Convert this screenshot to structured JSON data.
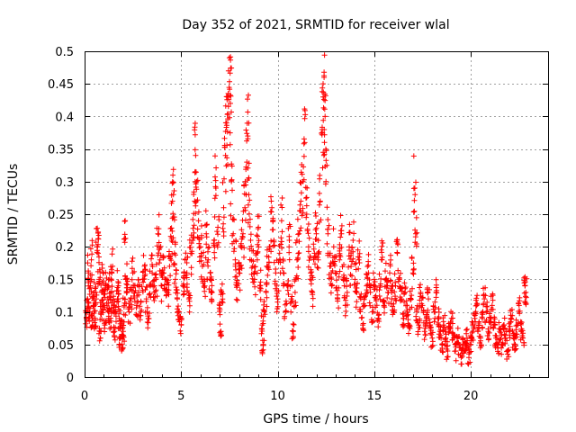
{
  "chart_data": {
    "type": "scatter",
    "title": "Day 352 of 2021, SRMTID for receiver wlal",
    "xlabel": "GPS time / hours",
    "ylabel": "SRMTID / TECUs",
    "xlim": [
      0,
      24
    ],
    "ylim": [
      0,
      0.5
    ],
    "x_ticks": [
      0,
      5,
      10,
      15,
      20
    ],
    "x_tick_labels": [
      "0",
      "5",
      "10",
      "15",
      "20"
    ],
    "y_ticks": [
      0,
      0.05,
      0.1,
      0.15,
      0.2,
      0.25,
      0.3,
      0.35,
      0.4,
      0.45,
      0.5
    ],
    "y_tick_labels": [
      "0",
      "0.05",
      "0.1",
      "0.15",
      "0.2",
      "0.25",
      "0.3",
      "0.35",
      "0.4",
      "0.45",
      "0.5"
    ],
    "grid": true,
    "marker": "+",
    "color": "#ff0000",
    "series": [
      {
        "name": "SRMTID",
        "points": [
          [
            0.1,
            0.09
          ],
          [
            0.15,
            0.12
          ],
          [
            0.2,
            0.16
          ],
          [
            0.25,
            0.1
          ],
          [
            0.3,
            0.14
          ],
          [
            0.35,
            0.18
          ],
          [
            0.4,
            0.08
          ],
          [
            0.45,
            0.11
          ],
          [
            0.5,
            0.13
          ],
          [
            0.55,
            0.09
          ],
          [
            0.6,
            0.12
          ],
          [
            0.65,
            0.2
          ],
          [
            0.7,
            0.19
          ],
          [
            0.75,
            0.15
          ],
          [
            0.8,
            0.07
          ],
          [
            0.85,
            0.1
          ],
          [
            0.9,
            0.13
          ],
          [
            0.95,
            0.16
          ],
          [
            1.0,
            0.11
          ],
          [
            1.05,
            0.08
          ],
          [
            1.1,
            0.14
          ],
          [
            1.2,
            0.12
          ],
          [
            1.25,
            0.1
          ],
          [
            1.3,
            0.15
          ],
          [
            1.35,
            0.09
          ],
          [
            1.4,
            0.13
          ],
          [
            1.45,
            0.17
          ],
          [
            1.5,
            0.11
          ],
          [
            1.55,
            0.07
          ],
          [
            1.6,
            0.1
          ],
          [
            1.7,
            0.12
          ],
          [
            1.75,
            0.14
          ],
          [
            1.8,
            0.09
          ],
          [
            1.85,
            0.06
          ],
          [
            1.9,
            0.08
          ],
          [
            1.95,
            0.05
          ],
          [
            2.0,
            0.07
          ],
          [
            2.05,
            0.11
          ],
          [
            2.1,
            0.24
          ],
          [
            2.15,
            0.15
          ],
          [
            2.2,
            0.13
          ],
          [
            2.3,
            0.1
          ],
          [
            2.4,
            0.12
          ],
          [
            2.5,
            0.16
          ],
          [
            2.6,
            0.14
          ],
          [
            2.7,
            0.11
          ],
          [
            2.8,
            0.13
          ],
          [
            2.9,
            0.1
          ],
          [
            3.0,
            0.15
          ],
          [
            3.1,
            0.17
          ],
          [
            3.2,
            0.12
          ],
          [
            3.3,
            0.09
          ],
          [
            3.4,
            0.14
          ],
          [
            3.5,
            0.16
          ],
          [
            3.6,
            0.13
          ],
          [
            3.7,
            0.15
          ],
          [
            3.8,
            0.22
          ],
          [
            3.9,
            0.18
          ],
          [
            4.0,
            0.14
          ],
          [
            4.1,
            0.16
          ],
          [
            4.2,
            0.15
          ],
          [
            4.3,
            0.13
          ],
          [
            4.4,
            0.17
          ],
          [
            4.5,
            0.21
          ],
          [
            4.55,
            0.27
          ],
          [
            4.6,
            0.28
          ],
          [
            4.65,
            0.19
          ],
          [
            4.7,
            0.15
          ],
          [
            4.8,
            0.12
          ],
          [
            4.9,
            0.1
          ],
          [
            5.0,
            0.08
          ],
          [
            5.1,
            0.14
          ],
          [
            5.2,
            0.18
          ],
          [
            5.3,
            0.16
          ],
          [
            5.4,
            0.12
          ],
          [
            5.5,
            0.19
          ],
          [
            5.6,
            0.21
          ],
          [
            5.7,
            0.27
          ],
          [
            5.75,
            0.34
          ],
          [
            5.8,
            0.3
          ],
          [
            5.9,
            0.24
          ],
          [
            6.0,
            0.2
          ],
          [
            6.1,
            0.17
          ],
          [
            6.2,
            0.15
          ],
          [
            6.3,
            0.22
          ],
          [
            6.4,
            0.18
          ],
          [
            6.5,
            0.16
          ],
          [
            6.6,
            0.13
          ],
          [
            6.7,
            0.21
          ],
          [
            6.8,
            0.29
          ],
          [
            6.9,
            0.23
          ],
          [
            7.0,
            0.11
          ],
          [
            7.05,
            0.07
          ],
          [
            7.1,
            0.13
          ],
          [
            7.2,
            0.26
          ],
          [
            7.3,
            0.34
          ],
          [
            7.35,
            0.39
          ],
          [
            7.4,
            0.43
          ],
          [
            7.45,
            0.47
          ],
          [
            7.5,
            0.49
          ],
          [
            7.55,
            0.42
          ],
          [
            7.6,
            0.3
          ],
          [
            7.7,
            0.22
          ],
          [
            7.8,
            0.18
          ],
          [
            7.9,
            0.14
          ],
          [
            8.0,
            0.16
          ],
          [
            8.1,
            0.2
          ],
          [
            8.2,
            0.22
          ],
          [
            8.3,
            0.26
          ],
          [
            8.4,
            0.33
          ],
          [
            8.45,
            0.37
          ],
          [
            8.5,
            0.28
          ],
          [
            8.6,
            0.21
          ],
          [
            8.7,
            0.17
          ],
          [
            8.8,
            0.15
          ],
          [
            8.9,
            0.19
          ],
          [
            9.0,
            0.23
          ],
          [
            9.1,
            0.14
          ],
          [
            9.2,
            0.08
          ],
          [
            9.25,
            0.05
          ],
          [
            9.3,
            0.1
          ],
          [
            9.4,
            0.13
          ],
          [
            9.5,
            0.17
          ],
          [
            9.6,
            0.2
          ],
          [
            9.7,
            0.26
          ],
          [
            9.8,
            0.21
          ],
          [
            9.9,
            0.16
          ],
          [
            10.0,
            0.12
          ],
          [
            10.1,
            0.19
          ],
          [
            10.2,
            0.24
          ],
          [
            10.3,
            0.16
          ],
          [
            10.4,
            0.1
          ],
          [
            10.5,
            0.14
          ],
          [
            10.6,
            0.21
          ],
          [
            10.7,
            0.12
          ],
          [
            10.8,
            0.07
          ],
          [
            10.9,
            0.13
          ],
          [
            11.0,
            0.18
          ],
          [
            11.1,
            0.22
          ],
          [
            11.2,
            0.27
          ],
          [
            11.3,
            0.3
          ],
          [
            11.4,
            0.36
          ],
          [
            11.5,
            0.25
          ],
          [
            11.6,
            0.2
          ],
          [
            11.7,
            0.16
          ],
          [
            11.8,
            0.13
          ],
          [
            11.9,
            0.19
          ],
          [
            12.0,
            0.22
          ],
          [
            12.1,
            0.18
          ],
          [
            12.2,
            0.27
          ],
          [
            12.3,
            0.38
          ],
          [
            12.35,
            0.43
          ],
          [
            12.4,
            0.46
          ],
          [
            12.45,
            0.4
          ],
          [
            12.5,
            0.3
          ],
          [
            12.6,
            0.22
          ],
          [
            12.7,
            0.17
          ],
          [
            12.8,
            0.14
          ],
          [
            12.9,
            0.2
          ],
          [
            13.0,
            0.16
          ],
          [
            13.1,
            0.12
          ],
          [
            13.2,
            0.18
          ],
          [
            13.3,
            0.22
          ],
          [
            13.4,
            0.15
          ],
          [
            13.5,
            0.11
          ],
          [
            13.6,
            0.13
          ],
          [
            13.7,
            0.2
          ],
          [
            13.8,
            0.17
          ],
          [
            13.9,
            0.21
          ],
          [
            14.0,
            0.15
          ],
          [
            14.1,
            0.13
          ],
          [
            14.2,
            0.18
          ],
          [
            14.3,
            0.12
          ],
          [
            14.4,
            0.08
          ],
          [
            14.5,
            0.11
          ],
          [
            14.6,
            0.14
          ],
          [
            14.7,
            0.16
          ],
          [
            14.8,
            0.13
          ],
          [
            14.9,
            0.1
          ],
          [
            15.0,
            0.15
          ],
          [
            15.1,
            0.12
          ],
          [
            15.2,
            0.09
          ],
          [
            15.3,
            0.14
          ],
          [
            15.4,
            0.18
          ],
          [
            15.5,
            0.11
          ],
          [
            15.6,
            0.15
          ],
          [
            15.7,
            0.13
          ],
          [
            15.8,
            0.16
          ],
          [
            15.9,
            0.12
          ],
          [
            16.0,
            0.1
          ],
          [
            16.1,
            0.14
          ],
          [
            16.2,
            0.19
          ],
          [
            16.3,
            0.15
          ],
          [
            16.4,
            0.12
          ],
          [
            16.5,
            0.09
          ],
          [
            16.6,
            0.13
          ],
          [
            16.7,
            0.1
          ],
          [
            16.8,
            0.08
          ],
          [
            16.9,
            0.12
          ],
          [
            17.0,
            0.16
          ],
          [
            17.1,
            0.29
          ],
          [
            17.15,
            0.22
          ],
          [
            17.2,
            0.1
          ],
          [
            17.3,
            0.08
          ],
          [
            17.4,
            0.13
          ],
          [
            17.5,
            0.11
          ],
          [
            17.6,
            0.07
          ],
          [
            17.7,
            0.09
          ],
          [
            17.8,
            0.12
          ],
          [
            17.9,
            0.08
          ],
          [
            18.0,
            0.06
          ],
          [
            18.1,
            0.1
          ],
          [
            18.2,
            0.13
          ],
          [
            18.3,
            0.09
          ],
          [
            18.4,
            0.07
          ],
          [
            18.5,
            0.05
          ],
          [
            18.6,
            0.08
          ],
          [
            18.7,
            0.06
          ],
          [
            18.8,
            0.04
          ],
          [
            18.9,
            0.07
          ],
          [
            19.0,
            0.09
          ],
          [
            19.1,
            0.06
          ],
          [
            19.2,
            0.04
          ],
          [
            19.3,
            0.06
          ],
          [
            19.4,
            0.05
          ],
          [
            19.5,
            0.03
          ],
          [
            19.6,
            0.05
          ],
          [
            19.7,
            0.04
          ],
          [
            19.8,
            0.06
          ],
          [
            19.9,
            0.03
          ],
          [
            20.0,
            0.05
          ],
          [
            20.1,
            0.07
          ],
          [
            20.2,
            0.09
          ],
          [
            20.3,
            0.11
          ],
          [
            20.4,
            0.08
          ],
          [
            20.5,
            0.06
          ],
          [
            20.6,
            0.09
          ],
          [
            20.7,
            0.12
          ],
          [
            20.8,
            0.1
          ],
          [
            20.9,
            0.07
          ],
          [
            21.0,
            0.09
          ],
          [
            21.1,
            0.11
          ],
          [
            21.2,
            0.08
          ],
          [
            21.3,
            0.06
          ],
          [
            21.4,
            0.05
          ],
          [
            21.5,
            0.07
          ],
          [
            21.6,
            0.05
          ],
          [
            21.7,
            0.08
          ],
          [
            21.8,
            0.06
          ],
          [
            21.9,
            0.04
          ],
          [
            22.0,
            0.07
          ],
          [
            22.1,
            0.09
          ],
          [
            22.2,
            0.06
          ],
          [
            22.3,
            0.05
          ],
          [
            22.4,
            0.08
          ],
          [
            22.5,
            0.11
          ],
          [
            22.6,
            0.07
          ],
          [
            22.7,
            0.06
          ],
          [
            22.8,
            0.14
          ],
          [
            22.85,
            0.13
          ]
        ]
      }
    ]
  }
}
